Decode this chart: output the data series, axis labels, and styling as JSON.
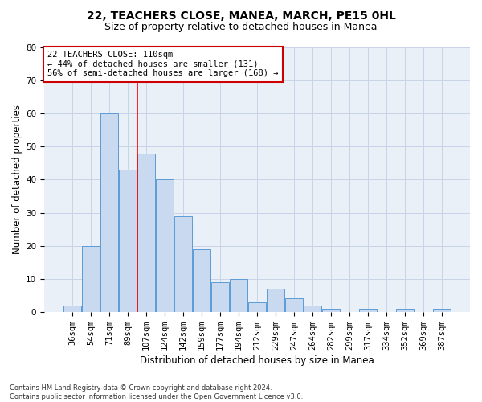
{
  "title": "22, TEACHERS CLOSE, MANEA, MARCH, PE15 0HL",
  "subtitle": "Size of property relative to detached houses in Manea",
  "xlabel": "Distribution of detached houses by size in Manea",
  "ylabel": "Number of detached properties",
  "categories": [
    "36sqm",
    "54sqm",
    "71sqm",
    "89sqm",
    "107sqm",
    "124sqm",
    "142sqm",
    "159sqm",
    "177sqm",
    "194sqm",
    "212sqm",
    "229sqm",
    "247sqm",
    "264sqm",
    "282sqm",
    "299sqm",
    "317sqm",
    "334sqm",
    "352sqm",
    "369sqm",
    "387sqm"
  ],
  "values": [
    2,
    20,
    60,
    43,
    48,
    40,
    29,
    19,
    9,
    10,
    3,
    7,
    4,
    2,
    1,
    0,
    1,
    0,
    1,
    0,
    1
  ],
  "bar_color": "#c9d9f0",
  "bar_edge_color": "#5b9bd5",
  "background_color": "#ffffff",
  "plot_bg_color": "#eaf0f8",
  "grid_color": "#c8d4e8",
  "annotation_text": "22 TEACHERS CLOSE: 110sqm\n← 44% of detached houses are smaller (131)\n56% of semi-detached houses are larger (168) →",
  "annotation_box_color": "#ffffff",
  "annotation_box_edge_color": "#cc0000",
  "red_line_index": 4,
  "ylim": [
    0,
    80
  ],
  "yticks": [
    0,
    10,
    20,
    30,
    40,
    50,
    60,
    70,
    80
  ],
  "footer": "Contains HM Land Registry data © Crown copyright and database right 2024.\nContains public sector information licensed under the Open Government Licence v3.0.",
  "title_fontsize": 10,
  "subtitle_fontsize": 9,
  "xlabel_fontsize": 8.5,
  "ylabel_fontsize": 8.5,
  "tick_fontsize": 7.5,
  "annot_fontsize": 7.5,
  "footer_fontsize": 6
}
